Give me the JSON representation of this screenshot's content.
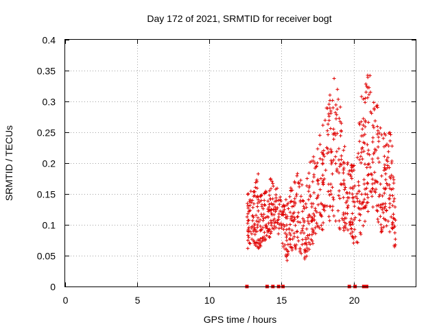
{
  "chart_data": {
    "type": "scatter",
    "title": "Day 172 of 2021, SRMTID for receiver bogt",
    "xlabel": "GPS time / hours",
    "ylabel": "SRMTID / TECUs",
    "xlim": [
      0,
      24.3
    ],
    "ylim": [
      0,
      0.4
    ],
    "xticks": [
      0,
      5,
      10,
      15,
      20
    ],
    "xtick_labels": [
      "0",
      "5",
      "10",
      "15",
      "20"
    ],
    "yticks": [
      0,
      0.05,
      0.1,
      0.15,
      0.2,
      0.25,
      0.3,
      0.35,
      0.4
    ],
    "ytick_labels": [
      "0",
      "0.05",
      "0.1",
      "0.15",
      "0.2",
      "0.25",
      "0.3",
      "0.35",
      "0.4"
    ],
    "grid": true,
    "marker": "+",
    "color": "#e00000",
    "zero_markers_x": [
      12.6,
      14.0,
      14.4,
      14.8,
      15.1,
      19.7,
      20.1,
      20.7,
      20.9
    ],
    "envelope": [
      {
        "x": 12.6,
        "lo": 0.06,
        "hi": 0.15
      },
      {
        "x": 13.0,
        "lo": 0.07,
        "hi": 0.16
      },
      {
        "x": 13.4,
        "lo": 0.06,
        "hi": 0.19
      },
      {
        "x": 13.8,
        "lo": 0.07,
        "hi": 0.15
      },
      {
        "x": 14.2,
        "lo": 0.08,
        "hi": 0.18
      },
      {
        "x": 14.6,
        "lo": 0.09,
        "hi": 0.17
      },
      {
        "x": 15.0,
        "lo": 0.07,
        "hi": 0.15
      },
      {
        "x": 15.4,
        "lo": 0.04,
        "hi": 0.14
      },
      {
        "x": 15.8,
        "lo": 0.06,
        "hi": 0.18
      },
      {
        "x": 16.2,
        "lo": 0.06,
        "hi": 0.19
      },
      {
        "x": 16.6,
        "lo": 0.04,
        "hi": 0.16
      },
      {
        "x": 17.0,
        "lo": 0.06,
        "hi": 0.21
      },
      {
        "x": 17.4,
        "lo": 0.08,
        "hi": 0.22
      },
      {
        "x": 17.8,
        "lo": 0.09,
        "hi": 0.26
      },
      {
        "x": 18.2,
        "lo": 0.1,
        "hi": 0.3
      },
      {
        "x": 18.6,
        "lo": 0.11,
        "hi": 0.34
      },
      {
        "x": 19.0,
        "lo": 0.08,
        "hi": 0.32
      },
      {
        "x": 19.4,
        "lo": 0.09,
        "hi": 0.24
      },
      {
        "x": 19.8,
        "lo": 0.08,
        "hi": 0.2
      },
      {
        "x": 20.2,
        "lo": 0.05,
        "hi": 0.21
      },
      {
        "x": 20.6,
        "lo": 0.09,
        "hi": 0.33
      },
      {
        "x": 21.0,
        "lo": 0.12,
        "hi": 0.36
      },
      {
        "x": 21.4,
        "lo": 0.13,
        "hi": 0.32
      },
      {
        "x": 21.8,
        "lo": 0.08,
        "hi": 0.3
      },
      {
        "x": 22.2,
        "lo": 0.1,
        "hi": 0.25
      },
      {
        "x": 22.6,
        "lo": 0.08,
        "hi": 0.26
      },
      {
        "x": 22.9,
        "lo": 0.05,
        "hi": 0.12
      }
    ],
    "point_count": 900
  }
}
